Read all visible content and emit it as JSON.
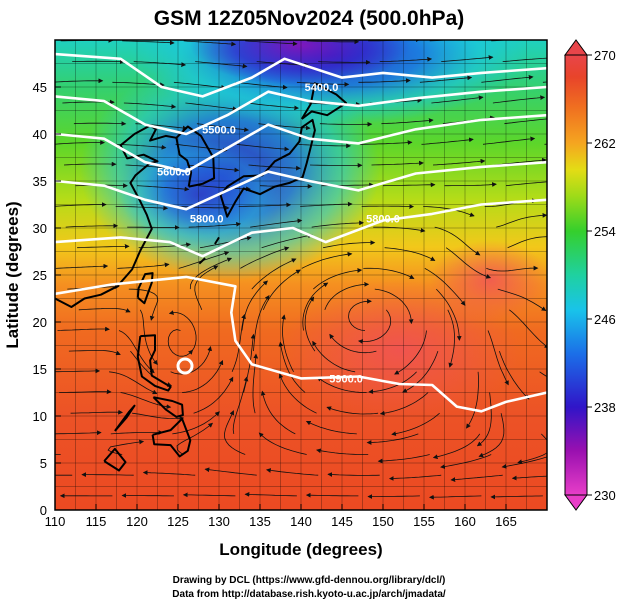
{
  "chart_data": {
    "type": "heatmap",
    "title": "GSM 12Z05Nov2024 (500.0hPa)",
    "xlabel": "Longitude (degrees)",
    "ylabel": "Latitude  (degrees)",
    "xlim": [
      110,
      170
    ],
    "ylim": [
      0,
      50
    ],
    "x_ticks": [
      "110",
      "115",
      "120",
      "125",
      "130",
      "135",
      "140",
      "145",
      "150",
      "155",
      "160",
      "165"
    ],
    "y_ticks": [
      "0",
      "5",
      "10",
      "15",
      "20",
      "25",
      "30",
      "35",
      "40",
      "45"
    ],
    "grid": true,
    "colorbar": {
      "ticks": [
        "230",
        "238",
        "246",
        "254",
        "262",
        "270"
      ],
      "range": [
        230,
        270
      ],
      "colors": [
        "#e83ec8",
        "#9a10b0",
        "#3015c8",
        "#1b6ee8",
        "#19c3ea",
        "#1fd1a0",
        "#35cf2c",
        "#9fdb18",
        "#e4dc15",
        "#f5a520",
        "#f07020",
        "#e8442a",
        "#e8454a"
      ]
    },
    "contour_labels": [
      {
        "text": "5400.0",
        "lon": 142.5,
        "lat": 45.0
      },
      {
        "text": "5500.0",
        "lon": 130.0,
        "lat": 40.5
      },
      {
        "text": "5600.0",
        "lon": 124.5,
        "lat": 36.0
      },
      {
        "text": "5800.0",
        "lon": 128.5,
        "lat": 31.0
      },
      {
        "text": "5800.0",
        "lon": 150.0,
        "lat": 31.0
      },
      {
        "text": "5900.0",
        "lon": 145.5,
        "lat": 14.0
      }
    ],
    "footer": [
      "Drawing by DCL (https://www.gfd-dennou.org/library/dcl/)",
      "Data from http://database.rish.kyoto-u.ac.jp/arch/jmadata/"
    ]
  }
}
